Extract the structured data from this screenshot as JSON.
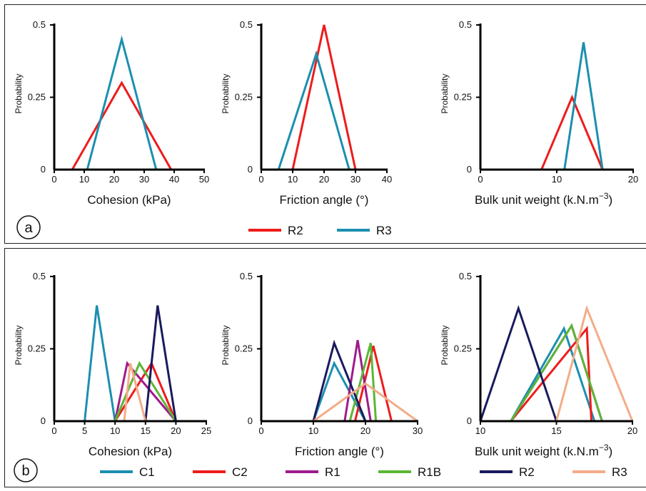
{
  "colors": {
    "R2_a": "#ee1c1c",
    "R3": "#1b8fb0",
    "C1": "#1b8fb0",
    "C2": "#ee1c1c",
    "R1": "#a01a8c",
    "R1B": "#5bb635",
    "R2_b": "#1a1a5e",
    "R3_b": "#f3ac88"
  },
  "panel_labels": {
    "a": "a",
    "b": "b"
  },
  "legend_a": [
    {
      "name": "R2",
      "color": "#ee1c1c"
    },
    {
      "name": "R3",
      "color": "#1b8fb0"
    }
  ],
  "legend_b": [
    {
      "name": "C1",
      "color": "#1b8fb0"
    },
    {
      "name": "C2",
      "color": "#ee1c1c"
    },
    {
      "name": "R1",
      "color": "#a01a8c"
    },
    {
      "name": "R1B",
      "color": "#5bb635"
    },
    {
      "name": "R2",
      "color": "#1a1a5e"
    },
    {
      "name": "R3",
      "color": "#f3ac88"
    }
  ],
  "chart_data": [
    {
      "type": "line",
      "panel": "a",
      "xlabel": "Cohesion (kPa)",
      "ylabel": "Probability",
      "xlim": [
        0,
        50
      ],
      "ylim": [
        0,
        0.5
      ],
      "xticks": [
        0,
        10,
        20,
        30,
        40,
        50
      ],
      "yticks": [
        0,
        0.25,
        0.5
      ],
      "yticklabels": [
        "0",
        "0.25",
        "0.5"
      ],
      "series": [
        {
          "name": "R2",
          "color": "#ee1c1c",
          "x": [
            6,
            22.5,
            39
          ],
          "y": [
            0,
            0.3,
            0
          ]
        },
        {
          "name": "R3",
          "color": "#1b8fb0",
          "x": [
            11,
            22.5,
            34
          ],
          "y": [
            0,
            0.45,
            0
          ]
        }
      ]
    },
    {
      "type": "line",
      "panel": "a",
      "xlabel": "Friction angle (°)",
      "ylabel": "Probability",
      "xlim": [
        0,
        50
      ],
      "ylim": [
        0,
        0.5
      ],
      "xticks": [
        0,
        10,
        20,
        30,
        40
      ],
      "yticks": [
        0,
        0.25,
        0.5
      ],
      "yticklabels": [
        "0",
        "0.25",
        "0.5"
      ],
      "series": [
        {
          "name": "R2",
          "color": "#ee1c1c",
          "x": [
            10,
            20,
            30
          ],
          "y": [
            0,
            0.5,
            0
          ]
        },
        {
          "name": "R3",
          "color": "#1b8fb0",
          "x": [
            5.5,
            17.5,
            28
          ],
          "y": [
            0,
            0.4,
            0
          ]
        }
      ]
    },
    {
      "type": "line",
      "panel": "a",
      "xlabel": "Bulk unit weight (k.N.m",
      "xlabel_sup": "−3",
      "xlabel_end": ")",
      "ylabel": "Probability",
      "xlim": [
        0,
        20
      ],
      "ylim": [
        0,
        0.5
      ],
      "xticks": [
        0,
        10,
        20
      ],
      "yticks": [
        0,
        0.25,
        0.5
      ],
      "yticklabels": [
        "0",
        "0.25",
        "0.5"
      ],
      "series": [
        {
          "name": "R2",
          "color": "#ee1c1c",
          "x": [
            8,
            12,
            16
          ],
          "y": [
            0,
            0.25,
            0
          ]
        },
        {
          "name": "R3",
          "color": "#1b8fb0",
          "x": [
            11,
            13.5,
            16
          ],
          "y": [
            0,
            0.44,
            0
          ]
        }
      ]
    },
    {
      "type": "line",
      "panel": "b",
      "xlabel": "Cohesion (kPa)",
      "ylabel": "Probability",
      "xlim": [
        0,
        25
      ],
      "ylim": [
        0,
        0.5
      ],
      "xticks": [
        0,
        5,
        10,
        15,
        20,
        25
      ],
      "yticks": [
        0,
        0.25,
        0.5
      ],
      "yticklabels": [
        "0",
        "0.25",
        "0.5"
      ],
      "series": [
        {
          "name": "C1",
          "color": "#1b8fb0",
          "x": [
            5,
            7,
            10
          ],
          "y": [
            0,
            0.4,
            0
          ]
        },
        {
          "name": "C2",
          "color": "#ee1c1c",
          "x": [
            10,
            16,
            20
          ],
          "y": [
            0,
            0.2,
            0
          ]
        },
        {
          "name": "R1",
          "color": "#a01a8c",
          "x": [
            10,
            12,
            20
          ],
          "y": [
            0,
            0.2,
            0
          ]
        },
        {
          "name": "R1B",
          "color": "#5bb635",
          "x": [
            10,
            14,
            20
          ],
          "y": [
            0,
            0.2,
            0
          ]
        },
        {
          "name": "R2",
          "color": "#1a1a5e",
          "x": [
            15,
            17,
            20
          ],
          "y": [
            0,
            0.4,
            0
          ]
        },
        {
          "name": "R3",
          "color": "#f3ac88",
          "x": [
            11.5,
            12.5,
            15
          ],
          "y": [
            0,
            0.2,
            0
          ]
        }
      ]
    },
    {
      "type": "line",
      "panel": "b",
      "xlabel": "Friction angle (°)",
      "ylabel": "Probability",
      "xlim": [
        0,
        30
      ],
      "ylim": [
        0,
        0.5
      ],
      "xticks": [
        0,
        10,
        20,
        30
      ],
      "yticks": [
        0,
        0.25,
        0.5
      ],
      "yticklabels": [
        "0",
        "0.25",
        "0.5"
      ],
      "series": [
        {
          "name": "C1",
          "color": "#1b8fb0",
          "x": [
            10,
            14,
            20
          ],
          "y": [
            0,
            0.2,
            0
          ]
        },
        {
          "name": "C2",
          "color": "#ee1c1c",
          "x": [
            18,
            21.5,
            25
          ],
          "y": [
            0,
            0.26,
            0
          ]
        },
        {
          "name": "R1",
          "color": "#a01a8c",
          "x": [
            16,
            18.5,
            21
          ],
          "y": [
            0,
            0.28,
            0
          ]
        },
        {
          "name": "R1B",
          "color": "#5bb635",
          "x": [
            17,
            21,
            22
          ],
          "y": [
            0,
            0.27,
            0
          ]
        },
        {
          "name": "R2",
          "color": "#1a1a5e",
          "x": [
            10,
            14,
            20
          ],
          "y": [
            0,
            0.27,
            0
          ]
        },
        {
          "name": "R3",
          "color": "#f3ac88",
          "x": [
            10,
            20,
            30
          ],
          "y": [
            0,
            0.13,
            0
          ]
        }
      ]
    },
    {
      "type": "line",
      "panel": "b",
      "xlabel": "Bulk unit weight (k.N.m",
      "xlabel_sup": "−3",
      "xlabel_end": ")",
      "ylabel": "Probability",
      "xlim": [
        10,
        20
      ],
      "ylim": [
        0,
        0.5
      ],
      "xticks": [
        10,
        15,
        20
      ],
      "yticks": [
        0,
        0.25,
        0.5
      ],
      "yticklabels": [
        "0",
        "0.25",
        "0.5"
      ],
      "series": [
        {
          "name": "C1",
          "color": "#1b8fb0",
          "x": [
            12,
            15.5,
            17.5
          ],
          "y": [
            0,
            0.32,
            0
          ]
        },
        {
          "name": "C2",
          "color": "#ee1c1c",
          "x": [
            12,
            17,
            17.3
          ],
          "y": [
            0,
            0.32,
            0
          ]
        },
        {
          "name": "R1",
          "color": "#a01a8c",
          "x": [
            12,
            16,
            18
          ],
          "y": [
            0,
            0.33,
            0
          ]
        },
        {
          "name": "R1B",
          "color": "#5bb635",
          "x": [
            12,
            16,
            18
          ],
          "y": [
            0,
            0.33,
            0
          ]
        },
        {
          "name": "R2",
          "color": "#1a1a5e",
          "x": [
            10,
            12.5,
            15
          ],
          "y": [
            0,
            0.39,
            0
          ]
        },
        {
          "name": "R3",
          "color": "#f3ac88",
          "x": [
            15,
            17,
            20
          ],
          "y": [
            0,
            0.39,
            0
          ]
        }
      ]
    }
  ]
}
